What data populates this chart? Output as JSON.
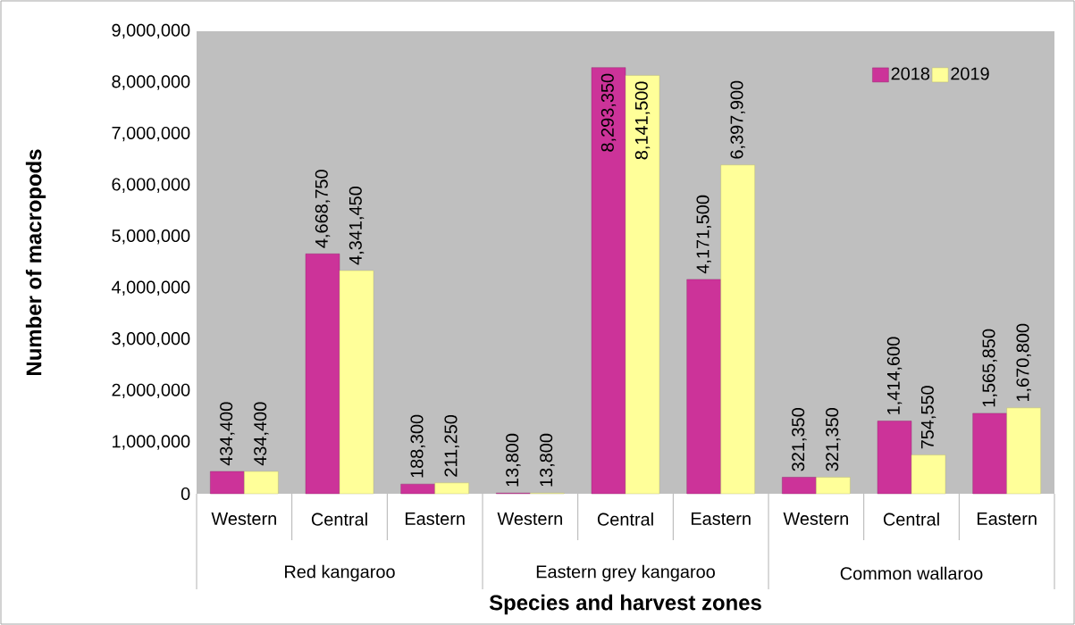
{
  "chart_data": {
    "type": "bar",
    "xlabel": "Species and harvest zones",
    "ylabel": "Number of macropods",
    "categories": [
      "Western",
      "Central",
      "Eastern",
      "Western",
      "Central",
      "Eastern",
      "Western",
      "Central",
      "Eastern"
    ],
    "annotations": [
      "Red kangaroo",
      "Eastern grey kangaroo",
      "Common wallaroo"
    ],
    "series": [
      {
        "name": "2018",
        "color": "#cc3399",
        "values": [
          434400,
          4668750,
          188300,
          13800,
          8293350,
          4171500,
          321350,
          1414600,
          1565850
        ],
        "value_labels": [
          "434,400",
          "4,668,750",
          "188,300",
          "13,800",
          "8,293,350",
          "4,171,500",
          "321,350",
          "1,414,600",
          "1,565,850"
        ]
      },
      {
        "name": "2019",
        "color": "#ffff99",
        "values": [
          434400,
          4341450,
          211250,
          13800,
          8141500,
          6397900,
          321350,
          754550,
          1670800
        ],
        "value_labels": [
          "434,400",
          "4,341,450",
          "211,250",
          "13,800",
          "8,141,500",
          "6,397,900",
          "321,350",
          "754,550",
          "1,670,800"
        ]
      }
    ],
    "ylim": [
      0,
      9000000
    ],
    "yticks": [
      {
        "value": 0,
        "label": "0"
      },
      {
        "value": 1000000,
        "label": "1,000,000"
      },
      {
        "value": 2000000,
        "label": "2,000,000"
      },
      {
        "value": 3000000,
        "label": "3,000,000"
      },
      {
        "value": 4000000,
        "label": "4,000,000"
      },
      {
        "value": 5000000,
        "label": "5,000,000"
      },
      {
        "value": 6000000,
        "label": "6,000,000"
      },
      {
        "value": 7000000,
        "label": "7,000,000"
      },
      {
        "value": 8000000,
        "label": "8,000,000"
      },
      {
        "value": 9000000,
        "label": "9,000,000"
      }
    ],
    "legend": "top right"
  }
}
